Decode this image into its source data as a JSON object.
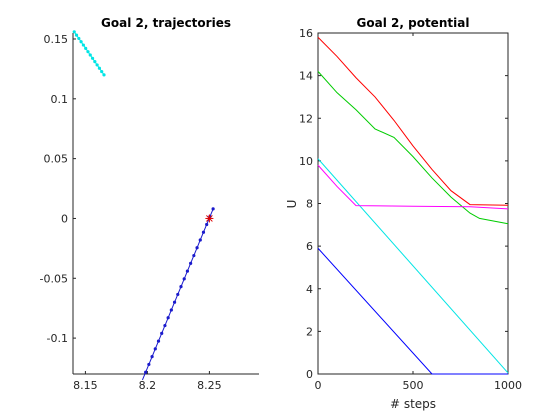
{
  "chart_data": [
    {
      "type": "line",
      "title": "Goal 2, trajectories",
      "xlabel": "",
      "ylabel": "",
      "xlim": [
        8.14,
        8.29
      ],
      "ylim": [
        -0.13,
        0.155
      ],
      "xticks": [
        {
          "value": 8.15,
          "label": "8.15"
        },
        {
          "value": 8.2,
          "label": "8.2"
        },
        {
          "value": 8.25,
          "label": "8.25"
        }
      ],
      "yticks": [
        {
          "value": 0.15,
          "label": "0.15"
        },
        {
          "value": 0.1,
          "label": "0.1"
        },
        {
          "value": 0.05,
          "label": "0.05"
        },
        {
          "value": 0,
          "label": "0"
        },
        {
          "value": -0.05,
          "label": "-0.05"
        },
        {
          "value": -0.1,
          "label": "-0.1"
        }
      ],
      "series": [
        {
          "color": "#00e5e5",
          "marker": "dot",
          "start": [
            8.141,
            0.156
          ],
          "end": [
            8.165,
            0.12
          ],
          "n_points": 14
        },
        {
          "color": "#1a1acc",
          "marker": "dot",
          "start": [
            8.196,
            -0.135
          ],
          "end": [
            8.253,
            0.008
          ],
          "n_points": 23
        }
      ],
      "goal": {
        "x": 8.25,
        "y": 0.0,
        "color": "#dd0000",
        "marker": "star"
      }
    },
    {
      "type": "line",
      "title": "Goal 2, potential",
      "xlabel": "# steps",
      "ylabel": "U",
      "xlim": [
        0,
        1000
      ],
      "ylim": [
        0,
        16
      ],
      "xticks": [
        {
          "value": 0,
          "label": "0"
        },
        {
          "value": 500,
          "label": "500"
        },
        {
          "value": 1000,
          "label": "1000"
        }
      ],
      "yticks": [
        {
          "value": 0,
          "label": "0"
        },
        {
          "value": 2,
          "label": "2"
        },
        {
          "value": 4,
          "label": "4"
        },
        {
          "value": 6,
          "label": "6"
        },
        {
          "value": 8,
          "label": "8"
        },
        {
          "value": 10,
          "label": "10"
        },
        {
          "value": 12,
          "label": "12"
        },
        {
          "value": 14,
          "label": "14"
        },
        {
          "value": 16,
          "label": "16"
        }
      ],
      "series": [
        {
          "color": "#ff0000",
          "x": [
            0,
            100,
            200,
            300,
            400,
            500,
            600,
            700,
            800,
            1000
          ],
          "y": [
            15.8,
            14.9,
            13.9,
            13.0,
            11.9,
            10.7,
            9.6,
            8.6,
            7.95,
            7.92
          ]
        },
        {
          "color": "#00cc00",
          "x": [
            0,
            100,
            200,
            300,
            400,
            500,
            600,
            700,
            800,
            850,
            1000
          ],
          "y": [
            14.2,
            13.2,
            12.4,
            11.5,
            11.1,
            10.2,
            9.2,
            8.3,
            7.55,
            7.3,
            7.05
          ]
        },
        {
          "color": "#00e5e5",
          "x": [
            0,
            1000
          ],
          "y": [
            10.1,
            0.05
          ]
        },
        {
          "color": "#ff00ff",
          "x": [
            0,
            100,
            200,
            500,
            800,
            1000
          ],
          "y": [
            9.8,
            8.8,
            7.9,
            7.87,
            7.85,
            7.75
          ]
        },
        {
          "color": "#0000ff",
          "x": [
            0,
            600,
            1000
          ],
          "y": [
            5.9,
            0.0,
            0.0
          ]
        }
      ]
    }
  ]
}
